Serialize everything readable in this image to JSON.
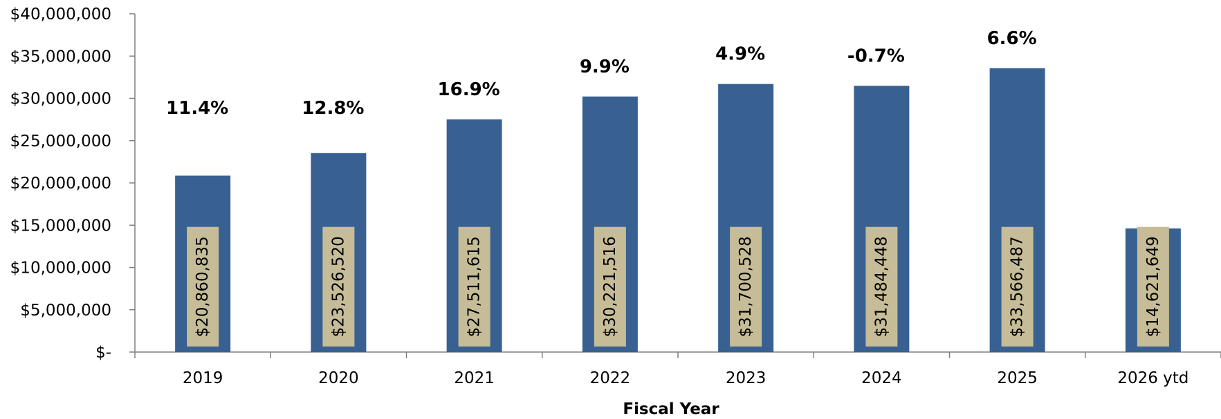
{
  "chart_data": {
    "type": "bar",
    "categories": [
      "2019",
      "2020",
      "2021",
      "2022",
      "2023",
      "2024",
      "2025",
      "2026 ytd"
    ],
    "values": [
      20860835,
      23526520,
      27511615,
      30221516,
      31700528,
      31484448,
      33566487,
      14621649
    ],
    "value_labels": [
      "$20,860,835",
      "$23,526,520",
      "$27,511,615",
      "$30,221,516",
      "$31,700,528",
      "$31,484,448",
      "$33,566,487",
      "$14,621,649"
    ],
    "growth_labels": [
      "11.4%",
      "12.8%",
      "16.9%",
      "9.9%",
      "4.9%",
      "-0.7%",
      "6.6%",
      ""
    ],
    "title": "",
    "xlabel": "Fiscal Year",
    "ylabel": "",
    "ylim": [
      0,
      40000000
    ],
    "yticks": [
      0,
      5000000,
      10000000,
      15000000,
      20000000,
      25000000,
      30000000,
      35000000,
      40000000
    ],
    "ytick_labels": [
      "$-",
      "$5,000,000",
      "$10,000,000",
      "$15,000,000",
      "$20,000,000",
      "$25,000,000",
      "$30,000,000",
      "$35,000,000",
      "$40,000,000"
    ],
    "grid": false,
    "legend": "none",
    "colors": {
      "bar": "#386192",
      "value_label_box": "#c6bd98",
      "axis": "#7f7f7f"
    }
  }
}
